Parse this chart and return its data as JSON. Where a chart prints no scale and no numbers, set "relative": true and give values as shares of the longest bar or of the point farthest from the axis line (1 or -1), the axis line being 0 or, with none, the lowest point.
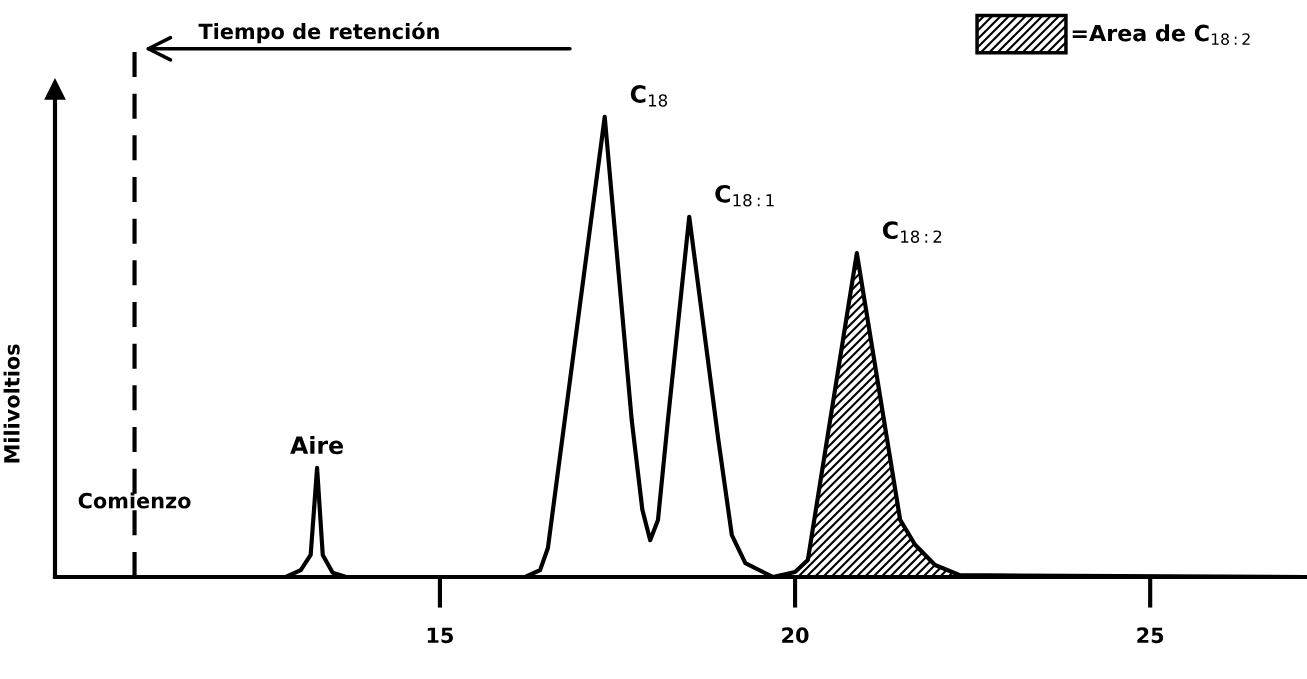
{
  "chart_data": {
    "type": "line",
    "relative": true,
    "ylabel": "Milivoltios",
    "xlim": [
      9.58,
      27.18
    ],
    "xticks": [
      15,
      20,
      25
    ],
    "grid": false,
    "legend": "top right",
    "marker": "none",
    "line_style": "solid",
    "series": [
      {
        "color": "#000000",
        "x": [
          9.58,
          12.83,
          13.04,
          13.18,
          13.27,
          13.35,
          13.49,
          13.68,
          16.2,
          16.41,
          16.52,
          17.32,
          17.7,
          17.85,
          17.96,
          18.07,
          18.21,
          18.51,
          18.92,
          19.11,
          19.3,
          19.69,
          20.0,
          20.18,
          20.87,
          21.48,
          21.69,
          21.97,
          22.32,
          27.18
        ],
        "values": [
          0,
          0,
          0.015,
          0.048,
          0.237,
          0.048,
          0.009,
          0,
          0,
          0.015,
          0.063,
          1.0,
          0.341,
          0.146,
          0.08,
          0.124,
          0.341,
          0.783,
          0.298,
          0.091,
          0.03,
          0,
          0.011,
          0.037,
          0.704,
          0.124,
          0.07,
          0.026,
          0.004,
          0
        ]
      },
      {
        "type": "area",
        "name": "=Area de C$_{18:2}$",
        "color": "#000000",
        "x": [
          20.0,
          20.18,
          20.87,
          21.48,
          21.69,
          21.97,
          22.32
        ],
        "values": [
          0.011,
          0.037,
          0.704,
          0.124,
          0.07,
          0.026,
          0.004
        ]
      }
    ],
    "ref_lines": [
      {
        "axis": "x",
        "value": 10.7,
        "label": "Comienzo",
        "line_style": "dashed",
        "color": "#000000"
      }
    ],
    "annotations": [
      {
        "text": "Aire",
        "x": 13.27,
        "y": 0.237
      },
      {
        "text": "C$_{18}$",
        "x": 17.32,
        "y": 1.0
      },
      {
        "text": "C$_{18:1}$",
        "x": 18.51,
        "y": 0.783
      },
      {
        "text": "C$_{18:2}$",
        "x": 20.87,
        "y": 0.704
      },
      "Tiempo de retención"
    ]
  }
}
